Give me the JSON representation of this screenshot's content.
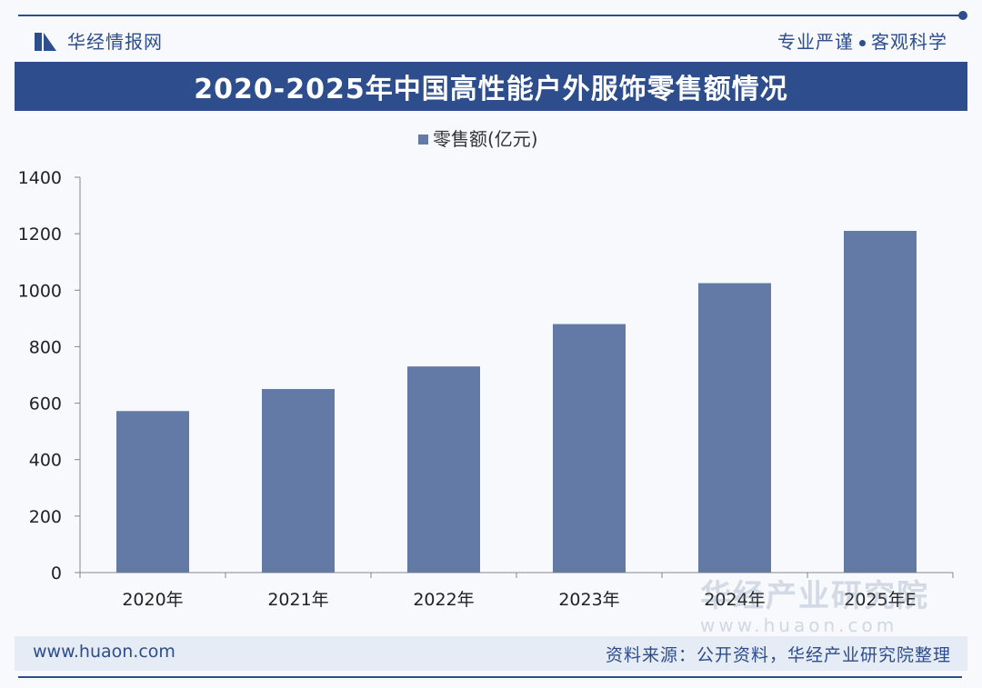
{
  "header": {
    "logo_text": "华经情报网",
    "slogan_left": "专业严谨",
    "slogan_right": "客观科学"
  },
  "title": "2020-2025年中国高性能户外服饰零售额情况",
  "footer": {
    "url": "www.huaon.com",
    "source": "资料来源：公开资料，华经产业研究院整理"
  },
  "watermark": {
    "brand": "华经产业研究院",
    "url": "www.huaon.com"
  },
  "colors": {
    "brand": "#2d4d8c",
    "bar": "#6379a6",
    "axis": "#888888"
  },
  "chart_data": {
    "type": "bar",
    "title": "2020-2025年中国高性能户外服饰零售额情况",
    "categories": [
      "2020年",
      "2021年",
      "2022年",
      "2023年",
      "2024年",
      "2025年E"
    ],
    "series": [
      {
        "name": "零售额(亿元)",
        "values": [
          572,
          650,
          730,
          880,
          1025,
          1210
        ]
      }
    ],
    "yticks": [
      0,
      200,
      400,
      600,
      800,
      1000,
      1200,
      1400
    ],
    "ylim": [
      0,
      1400
    ],
    "xlabel": "",
    "ylabel": "",
    "legend": "top-center",
    "grid": false
  }
}
